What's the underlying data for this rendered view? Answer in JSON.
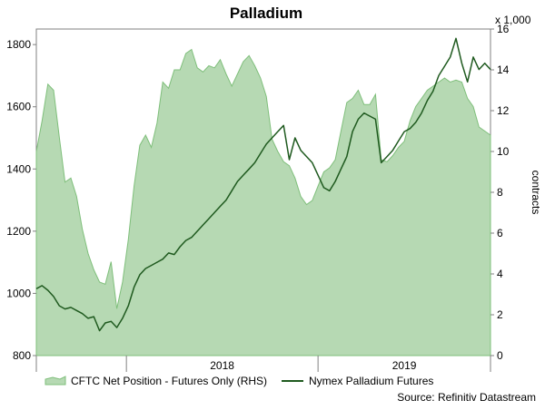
{
  "colors": {
    "area_fill": "#b6d9b3",
    "area_stroke": "#7fbf7b",
    "line": "#1f5a1f",
    "axis": "#808080",
    "text": "#000000",
    "background": "#ffffff"
  },
  "chart_data": {
    "type": "line",
    "title": "Palladium",
    "source": "Source: Refinitiv Datastream",
    "y_left": {
      "min": 800,
      "max": 1850,
      "ticks": [
        800,
        1000,
        1200,
        1400,
        1600,
        1800
      ]
    },
    "y_right": {
      "min": 0,
      "max": 16,
      "ticks": [
        0,
        2,
        4,
        6,
        8,
        10,
        12,
        14,
        16
      ],
      "label": "contracts",
      "unit": "x 1,000"
    },
    "x_axis": {
      "labels": [
        "2018",
        "2019"
      ],
      "label_positions": [
        2018.0,
        2019.0
      ],
      "domain": [
        2017.53,
        2019.9
      ],
      "dividers": [
        2017.53,
        2018.0,
        2019.0,
        2019.9
      ]
    },
    "legend": [
      "CFTC Net Position - Futures Only (RHS)",
      "Nymex Palladium Futures"
    ],
    "series": [
      {
        "name": "CFTC Net Position - Futures Only (RHS)",
        "axis": "right",
        "kind": "area",
        "x": [
          2017.53,
          2017.56,
          2017.59,
          2017.62,
          2017.65,
          2017.68,
          2017.71,
          2017.74,
          2017.77,
          2017.8,
          2017.83,
          2017.86,
          2017.89,
          2017.92,
          2017.95,
          2017.98,
          2018.01,
          2018.04,
          2018.07,
          2018.1,
          2018.13,
          2018.16,
          2018.19,
          2018.22,
          2018.25,
          2018.28,
          2018.31,
          2018.34,
          2018.37,
          2018.4,
          2018.43,
          2018.46,
          2018.49,
          2018.52,
          2018.55,
          2018.58,
          2018.61,
          2018.64,
          2018.67,
          2018.7,
          2018.73,
          2018.76,
          2018.79,
          2018.82,
          2018.85,
          2018.88,
          2018.91,
          2018.94,
          2018.97,
          2019.0,
          2019.03,
          2019.06,
          2019.09,
          2019.12,
          2019.15,
          2019.18,
          2019.21,
          2019.24,
          2019.27,
          2019.3,
          2019.33,
          2019.36,
          2019.39,
          2019.42,
          2019.45,
          2019.48,
          2019.51,
          2019.54,
          2019.57,
          2019.6,
          2019.63,
          2019.66,
          2019.69,
          2019.72,
          2019.75,
          2019.78,
          2019.81,
          2019.84,
          2019.87,
          2019.9
        ],
        "values": [
          10.0,
          11.5,
          13.3,
          13.0,
          10.7,
          8.5,
          8.7,
          7.8,
          6.2,
          5.0,
          4.2,
          3.6,
          3.5,
          4.6,
          2.3,
          3.6,
          5.7,
          8.3,
          10.3,
          10.8,
          10.2,
          11.4,
          13.4,
          13.1,
          14.0,
          14.0,
          14.8,
          15.0,
          14.1,
          13.9,
          14.2,
          14.1,
          14.5,
          13.8,
          13.2,
          13.8,
          14.4,
          14.7,
          14.2,
          13.6,
          12.7,
          10.6,
          10.0,
          9.5,
          9.3,
          8.7,
          7.8,
          7.4,
          7.6,
          8.3,
          9.0,
          9.2,
          9.6,
          11.0,
          12.4,
          12.6,
          13.0,
          12.3,
          12.3,
          12.8,
          9.6,
          9.5,
          9.8,
          10.2,
          10.5,
          11.5,
          12.2,
          12.6,
          13.0,
          13.2,
          13.4,
          13.6,
          13.4,
          13.5,
          13.4,
          12.6,
          12.2,
          11.2,
          11.0,
          10.8
        ]
      },
      {
        "name": "Nymex Palladium Futures",
        "axis": "left",
        "kind": "line",
        "x": [
          2017.53,
          2017.56,
          2017.59,
          2017.62,
          2017.65,
          2017.68,
          2017.71,
          2017.74,
          2017.77,
          2017.8,
          2017.83,
          2017.86,
          2017.89,
          2017.92,
          2017.95,
          2017.98,
          2018.01,
          2018.04,
          2018.07,
          2018.1,
          2018.13,
          2018.16,
          2018.19,
          2018.22,
          2018.25,
          2018.28,
          2018.31,
          2018.34,
          2018.37,
          2018.4,
          2018.43,
          2018.46,
          2018.49,
          2018.52,
          2018.55,
          2018.58,
          2018.61,
          2018.64,
          2018.67,
          2018.7,
          2018.73,
          2018.76,
          2018.79,
          2018.82,
          2018.85,
          2018.88,
          2018.91,
          2018.94,
          2018.97,
          2019.0,
          2019.03,
          2019.06,
          2019.09,
          2019.12,
          2019.15,
          2019.18,
          2019.21,
          2019.24,
          2019.27,
          2019.3,
          2019.33,
          2019.36,
          2019.39,
          2019.42,
          2019.45,
          2019.48,
          2019.51,
          2019.54,
          2019.57,
          2019.6,
          2019.63,
          2019.66,
          2019.69,
          2019.72,
          2019.75,
          2019.78,
          2019.81,
          2019.84,
          2019.87,
          2019.9
        ],
        "values": [
          1015,
          1025,
          1010,
          990,
          960,
          950,
          955,
          945,
          935,
          920,
          925,
          880,
          905,
          910,
          890,
          920,
          960,
          1020,
          1060,
          1080,
          1090,
          1100,
          1110,
          1130,
          1125,
          1150,
          1170,
          1180,
          1200,
          1220,
          1240,
          1260,
          1280,
          1300,
          1330,
          1360,
          1380,
          1400,
          1420,
          1450,
          1480,
          1500,
          1520,
          1540,
          1430,
          1500,
          1460,
          1440,
          1420,
          1380,
          1340,
          1330,
          1360,
          1400,
          1440,
          1520,
          1560,
          1580,
          1570,
          1560,
          1420,
          1440,
          1460,
          1490,
          1520,
          1530,
          1550,
          1580,
          1620,
          1650,
          1700,
          1730,
          1760,
          1820,
          1740,
          1680,
          1760,
          1720,
          1740,
          1720
        ]
      }
    ]
  }
}
